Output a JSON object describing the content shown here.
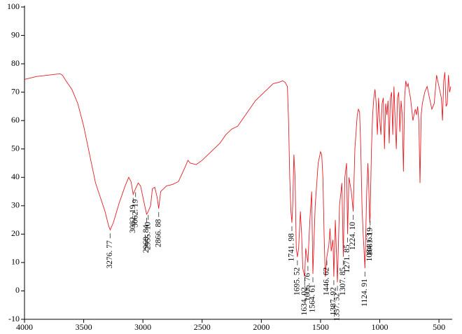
{
  "chart_data": {
    "type": "line",
    "color": "#e41e26",
    "xlim": [
      4000,
      400
    ],
    "ylim": [
      -10,
      100
    ],
    "xticks": [
      4000,
      3500,
      3000,
      2500,
      2000,
      1500,
      1000,
      500
    ],
    "yticks": [
      -10,
      0,
      10,
      20,
      30,
      40,
      50,
      60,
      70,
      80,
      90,
      100
    ],
    "x": [
      4000,
      3900,
      3800,
      3700,
      3680,
      3650,
      3600,
      3550,
      3500,
      3450,
      3400,
      3360,
      3320,
      3290,
      3276.77,
      3250,
      3200,
      3150,
      3120,
      3100,
      3082.19,
      3062.19,
      3040,
      3020,
      3000,
      2968.84,
      2955.1,
      2935,
      2920,
      2900,
      2880,
      2866.88,
      2850,
      2800,
      2750,
      2700,
      2650,
      2620,
      2600,
      2550,
      2500,
      2450,
      2400,
      2350,
      2300,
      2250,
      2200,
      2150,
      2100,
      2050,
      2000,
      1950,
      1900,
      1850,
      1820,
      1800,
      1780,
      1770,
      1760,
      1750,
      1741.98,
      1735,
      1725,
      1715,
      1705,
      1695.52,
      1685,
      1670,
      1660,
      1650,
      1634.02,
      1625,
      1606.76,
      1590,
      1575,
      1564.61,
      1545,
      1520,
      1500,
      1490,
      1480,
      1470,
      1460,
      1446.62,
      1430,
      1420,
      1410,
      1395,
      1387.92,
      1375,
      1357.52,
      1340,
      1320,
      1307.85,
      1295,
      1280,
      1271.85,
      1260,
      1240,
      1224.1,
      1210,
      1190,
      1180,
      1170,
      1160,
      1150,
      1140,
      1124.91,
      1110,
      1100,
      1095,
      1084.63,
      1081.19,
      1070,
      1060,
      1050,
      1040,
      1030,
      1020,
      1010,
      1000,
      990,
      980,
      970,
      960,
      950,
      940,
      930,
      920,
      910,
      900,
      890,
      880,
      870,
      860,
      850,
      840,
      830,
      820,
      810,
      800,
      790,
      780,
      770,
      760,
      750,
      740,
      720,
      710,
      700,
      690,
      680,
      670,
      660,
      650,
      640,
      620,
      600,
      580,
      560,
      540,
      520,
      500,
      480,
      470,
      460,
      450,
      440,
      430,
      420,
      410,
      400
    ],
    "values": [
      74.5,
      75.5,
      76,
      76.5,
      76,
      74,
      71,
      66,
      58,
      48,
      38,
      33,
      28,
      23,
      21.5,
      24,
      31,
      37,
      40,
      38.5,
      34,
      36,
      38,
      37,
      33,
      27,
      28,
      30,
      36,
      36.5,
      33,
      29,
      35,
      37,
      37.5,
      38.5,
      43,
      46,
      45,
      44.5,
      46,
      48,
      50,
      52,
      55,
      57,
      58,
      61,
      64,
      67,
      69,
      71,
      73,
      73.5,
      74,
      73.5,
      72,
      60,
      40,
      28,
      24,
      30,
      48,
      40,
      15,
      12,
      15,
      28,
      20,
      8,
      5,
      15,
      10,
      25,
      35,
      6,
      30,
      45,
      49,
      48,
      40,
      20,
      5,
      12,
      16,
      22,
      14,
      18,
      5,
      25,
      3,
      30,
      38,
      12,
      40,
      45,
      20,
      40,
      35,
      28,
      50,
      62,
      64,
      63,
      50,
      30,
      20,
      8,
      35,
      45,
      40,
      24,
      26,
      50,
      62,
      68,
      71,
      66,
      55,
      68,
      60,
      55,
      66,
      68,
      50,
      66,
      62,
      67,
      52,
      68,
      70,
      55,
      72,
      60,
      50,
      68,
      70,
      56,
      67,
      62,
      42,
      68,
      74,
      72,
      73,
      70,
      68,
      60,
      62,
      64,
      62,
      65,
      60,
      38,
      62,
      66,
      70,
      72,
      68,
      64,
      66,
      76,
      72,
      68,
      60,
      74,
      77,
      65,
      66,
      76,
      70,
      72
    ],
    "annotations": [
      {
        "x": 3276.77,
        "label": "3276. 77"
      },
      {
        "x": 3082.19,
        "label": "3082. 19"
      },
      {
        "x": 3062.19,
        "label": "3062. 19"
      },
      {
        "x": 2968.84,
        "label": "2968. 84"
      },
      {
        "x": 2955.1,
        "label": "2955. 10"
      },
      {
        "x": 2866.88,
        "label": "2866. 88"
      },
      {
        "x": 1741.98,
        "label": "1741. 98"
      },
      {
        "x": 1695.52,
        "label": "1695. 52"
      },
      {
        "x": 1634.02,
        "label": "1634. 02"
      },
      {
        "x": 1606.76,
        "label": "1606. 76"
      },
      {
        "x": 1564.61,
        "label": "1564. 61"
      },
      {
        "x": 1446.62,
        "label": "1446. 62"
      },
      {
        "x": 1387.92,
        "label": "1387. 92"
      },
      {
        "x": 1357.52,
        "label": "1357. 52"
      },
      {
        "x": 1307.85,
        "label": "1307. 85"
      },
      {
        "x": 1271.85,
        "label": "1271. 85"
      },
      {
        "x": 1224.1,
        "label": "1224. 10"
      },
      {
        "x": 1124.91,
        "label": "1124. 91"
      },
      {
        "x": 1084.63,
        "label": "1084. 63"
      },
      {
        "x": 1081.19,
        "label": "1081. 19"
      }
    ]
  }
}
